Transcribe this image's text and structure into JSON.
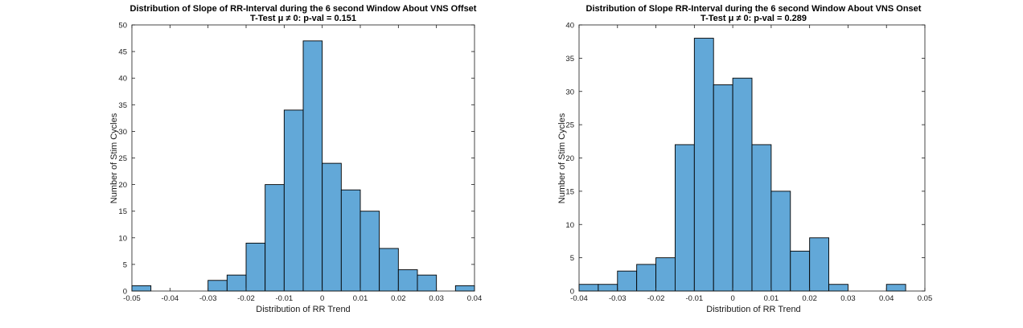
{
  "chart_data": [
    {
      "type": "bar",
      "title": "Distribution of Slope of RR-Interval during the 6 second Window About VNS Offset",
      "subtitle": "T-Test μ ≠ 0: p-val = 0.151",
      "xlabel": "Distribution of RR Trend",
      "ylabel": "Number of Stim Cycles",
      "xlim": [
        -0.05,
        0.04
      ],
      "ylim": [
        0,
        50
      ],
      "xticks": [
        -0.05,
        -0.04,
        -0.03,
        -0.02,
        -0.01,
        0,
        0.01,
        0.02,
        0.03,
        0.04
      ],
      "xtick_labels": [
        "-0.05",
        "-0.04",
        "-0.03",
        "-0.02",
        "-0.01",
        "0",
        "0.01",
        "0.02",
        "0.03",
        "0.04"
      ],
      "yticks": [
        0,
        5,
        10,
        15,
        20,
        25,
        30,
        35,
        40,
        45,
        50
      ],
      "bin_edges": [
        -0.05,
        -0.045,
        -0.04,
        -0.035,
        -0.03,
        -0.025,
        -0.02,
        -0.015,
        -0.01,
        -0.005,
        0,
        0.005,
        0.01,
        0.015,
        0.02,
        0.025,
        0.03,
        0.035,
        0.04
      ],
      "values": [
        1,
        0,
        0,
        0,
        2,
        3,
        9,
        20,
        34,
        47,
        24,
        19,
        15,
        8,
        4,
        3,
        0,
        1
      ],
      "grid": false,
      "bar_color": "#62a8d8"
    },
    {
      "type": "bar",
      "title": "Distribution of Slope RR-Interval during the 6 second Window About VNS Onset",
      "subtitle": "T-Test μ ≠ 0: p-val = 0.289",
      "xlabel": "Distribution of RR Trend",
      "ylabel": "Number of Stim Cycles",
      "xlim": [
        -0.04,
        0.05
      ],
      "ylim": [
        0,
        40
      ],
      "xticks": [
        -0.04,
        -0.03,
        -0.02,
        -0.01,
        0,
        0.01,
        0.02,
        0.03,
        0.04,
        0.05
      ],
      "xtick_labels": [
        "-0.04",
        "-0.03",
        "-0.02",
        "-0.01",
        "0",
        "0.01",
        "0.02",
        "0.03",
        "0.04",
        "0.05"
      ],
      "yticks": [
        0,
        5,
        10,
        15,
        20,
        25,
        30,
        35,
        40
      ],
      "bin_edges": [
        -0.04,
        -0.035,
        -0.03,
        -0.025,
        -0.02,
        -0.015,
        -0.01,
        -0.005,
        0,
        0.005,
        0.01,
        0.015,
        0.02,
        0.025,
        0.03,
        0.035,
        0.04,
        0.045
      ],
      "values": [
        1,
        1,
        3,
        4,
        5,
        22,
        38,
        31,
        32,
        22,
        15,
        6,
        8,
        1,
        0,
        0,
        1
      ],
      "grid": false,
      "bar_color": "#62a8d8"
    }
  ]
}
